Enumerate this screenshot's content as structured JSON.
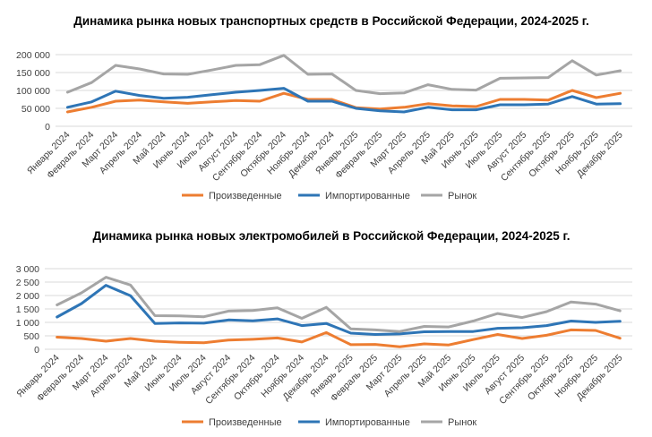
{
  "colors": {
    "produced": "#ed7d31",
    "imported": "#2e75b6",
    "market": "#a5a5a5"
  },
  "chart_data": [
    {
      "type": "line",
      "title": "Динамика рынка новых транспортных средств в Российской Федерации, 2024-2025 г.",
      "categories": [
        "Январь 2024",
        "Февраль 2024",
        "Март 2024",
        "Апрель 2024",
        "Май 2024",
        "Июнь 2024",
        "Июль 2024",
        "Август 2024",
        "Сентябрь 2024",
        "Октябрь 2024",
        "Ноябрь 2024",
        "Декабрь 2024",
        "Январь 2025",
        "Февраль 2025",
        "Март 2025",
        "Апрель 2025",
        "Май 2025",
        "Июнь 2025",
        "Июль 2025",
        "Август 2025",
        "Сентябрь 2025",
        "Октябрь 2025",
        "Ноябрь 2025",
        "Декабрь 2025"
      ],
      "y_ticks": [
        0,
        50000,
        100000,
        150000,
        200000
      ],
      "y_tick_labels": [
        "0",
        "50 000",
        "100 000",
        "150 000",
        "200 000"
      ],
      "ylim": [
        0,
        200000
      ],
      "series": [
        {
          "name": "Произведенные",
          "key": "produced",
          "values": [
            40000,
            53000,
            70000,
            73000,
            68000,
            64000,
            68000,
            72000,
            70000,
            92000,
            75000,
            75000,
            52000,
            48000,
            53000,
            63000,
            57000,
            55000,
            75000,
            75000,
            73000,
            100000,
            80000,
            92000
          ]
        },
        {
          "name": "Импортированные",
          "key": "imported",
          "values": [
            53000,
            68000,
            98000,
            86000,
            78000,
            81000,
            88000,
            95000,
            100000,
            106000,
            70000,
            70000,
            50000,
            43000,
            40000,
            53000,
            46000,
            46000,
            60000,
            60000,
            62000,
            83000,
            62000,
            63000
          ]
        },
        {
          "name": "Рынок",
          "key": "market",
          "values": [
            95000,
            122000,
            170000,
            160000,
            146000,
            145000,
            157000,
            170000,
            172000,
            198000,
            145000,
            146000,
            100000,
            91000,
            93000,
            116000,
            103000,
            101000,
            134000,
            135000,
            136000,
            183000,
            143000,
            155000
          ]
        }
      ]
    },
    {
      "type": "line",
      "title": "Динамика рынка новых электромобилей в Российской Федерации, 2024-2025 г.",
      "categories": [
        "Январь 2024",
        "Февраль 2024",
        "Март 2024",
        "Апрель 2024",
        "Май 2024",
        "Июнь 2024",
        "Июль 2024",
        "Август 2024",
        "Сентябрь 2024",
        "Октябрь 2024",
        "Ноябрь 2024",
        "Декабрь 2024",
        "Январь 2025",
        "Февраль 2025",
        "Март 2025",
        "Апрель 2025",
        "Май 2025",
        "Июнь 2025",
        "Июль 2025",
        "Август 2025",
        "Сентябрь 2025",
        "Октябрь 2025",
        "Ноябрь 2025",
        "Декабрь 2025"
      ],
      "y_ticks": [
        0,
        500,
        1000,
        1500,
        2000,
        2500,
        3000
      ],
      "y_tick_labels": [
        "0",
        "500",
        "1 000",
        "1 500",
        "2 000",
        "2 500",
        "3 000"
      ],
      "ylim": [
        0,
        3000
      ],
      "series": [
        {
          "name": "Произведенные",
          "key": "produced",
          "values": [
            450,
            400,
            300,
            400,
            300,
            260,
            240,
            340,
            370,
            420,
            270,
            620,
            170,
            180,
            90,
            200,
            160,
            360,
            550,
            400,
            520,
            720,
            700,
            410
          ]
        },
        {
          "name": "Импортированные",
          "key": "imported",
          "values": [
            1200,
            1700,
            2380,
            1990,
            960,
            980,
            970,
            1090,
            1060,
            1130,
            880,
            960,
            600,
            550,
            570,
            650,
            660,
            660,
            780,
            800,
            880,
            1050,
            1000,
            1040
          ]
        },
        {
          "name": "Рынок",
          "key": "market",
          "values": [
            1650,
            2100,
            2680,
            2390,
            1250,
            1240,
            1210,
            1420,
            1440,
            1540,
            1150,
            1560,
            760,
            720,
            660,
            850,
            830,
            1050,
            1330,
            1180,
            1400,
            1760,
            1680,
            1430
          ]
        }
      ]
    }
  ]
}
